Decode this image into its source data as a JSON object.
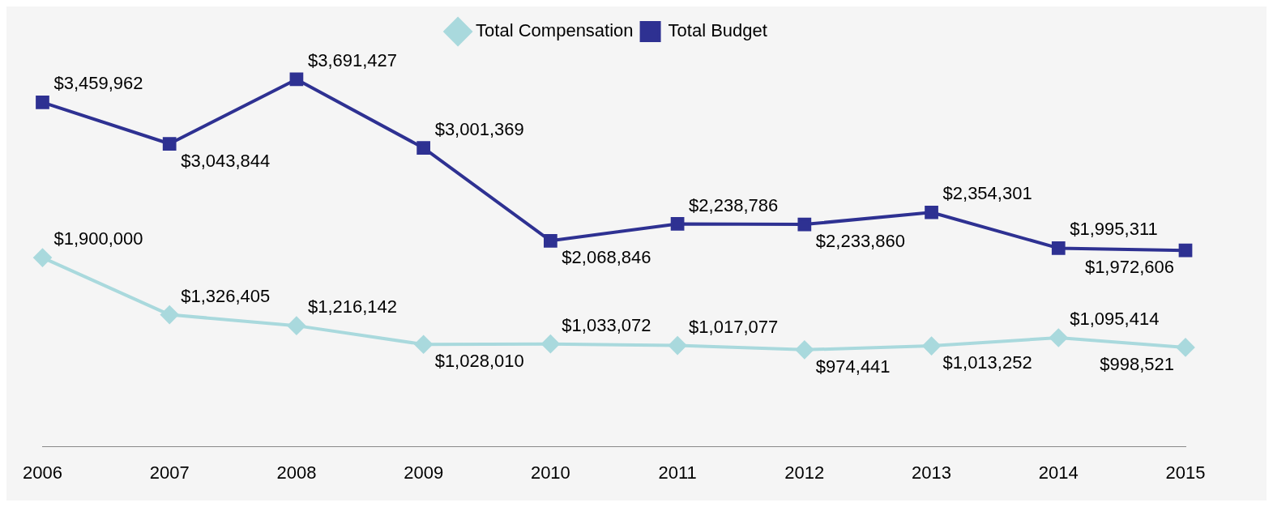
{
  "chart_data": {
    "type": "line",
    "categories": [
      "2006",
      "2007",
      "2008",
      "2009",
      "2010",
      "2011",
      "2012",
      "2013",
      "2014",
      "2015"
    ],
    "series": [
      {
        "name": "Total Compensation",
        "color": "#a9d9dd",
        "marker": "diamond",
        "values": [
          1900000,
          1326405,
          1216142,
          1028010,
          1033072,
          1017077,
          974441,
          1013252,
          1095414,
          998521
        ],
        "value_labels": [
          "$1,900,000",
          "$1,326,405",
          "$1,216,142",
          "$1,028,010",
          "$1,033,072",
          "$1,017,077",
          "$974,441",
          "$1,013,252",
          "$1,095,414",
          "$998,521"
        ]
      },
      {
        "name": "Total Budget",
        "color": "#2e3192",
        "marker": "square",
        "values": [
          3459962,
          3043844,
          3691427,
          3001369,
          2068846,
          2238786,
          2233860,
          2354301,
          1995311,
          1972606
        ],
        "value_labels": [
          "$3,459,962",
          "$3,043,844",
          "$3,691,427",
          "$3,001,369",
          "$2,068,846",
          "$2,238,786",
          "$2,233,860",
          "$2,354,301",
          "$1,995,311",
          "$1,972,606"
        ]
      }
    ],
    "legend": "top",
    "grid": false,
    "tick_labels": "x"
  }
}
